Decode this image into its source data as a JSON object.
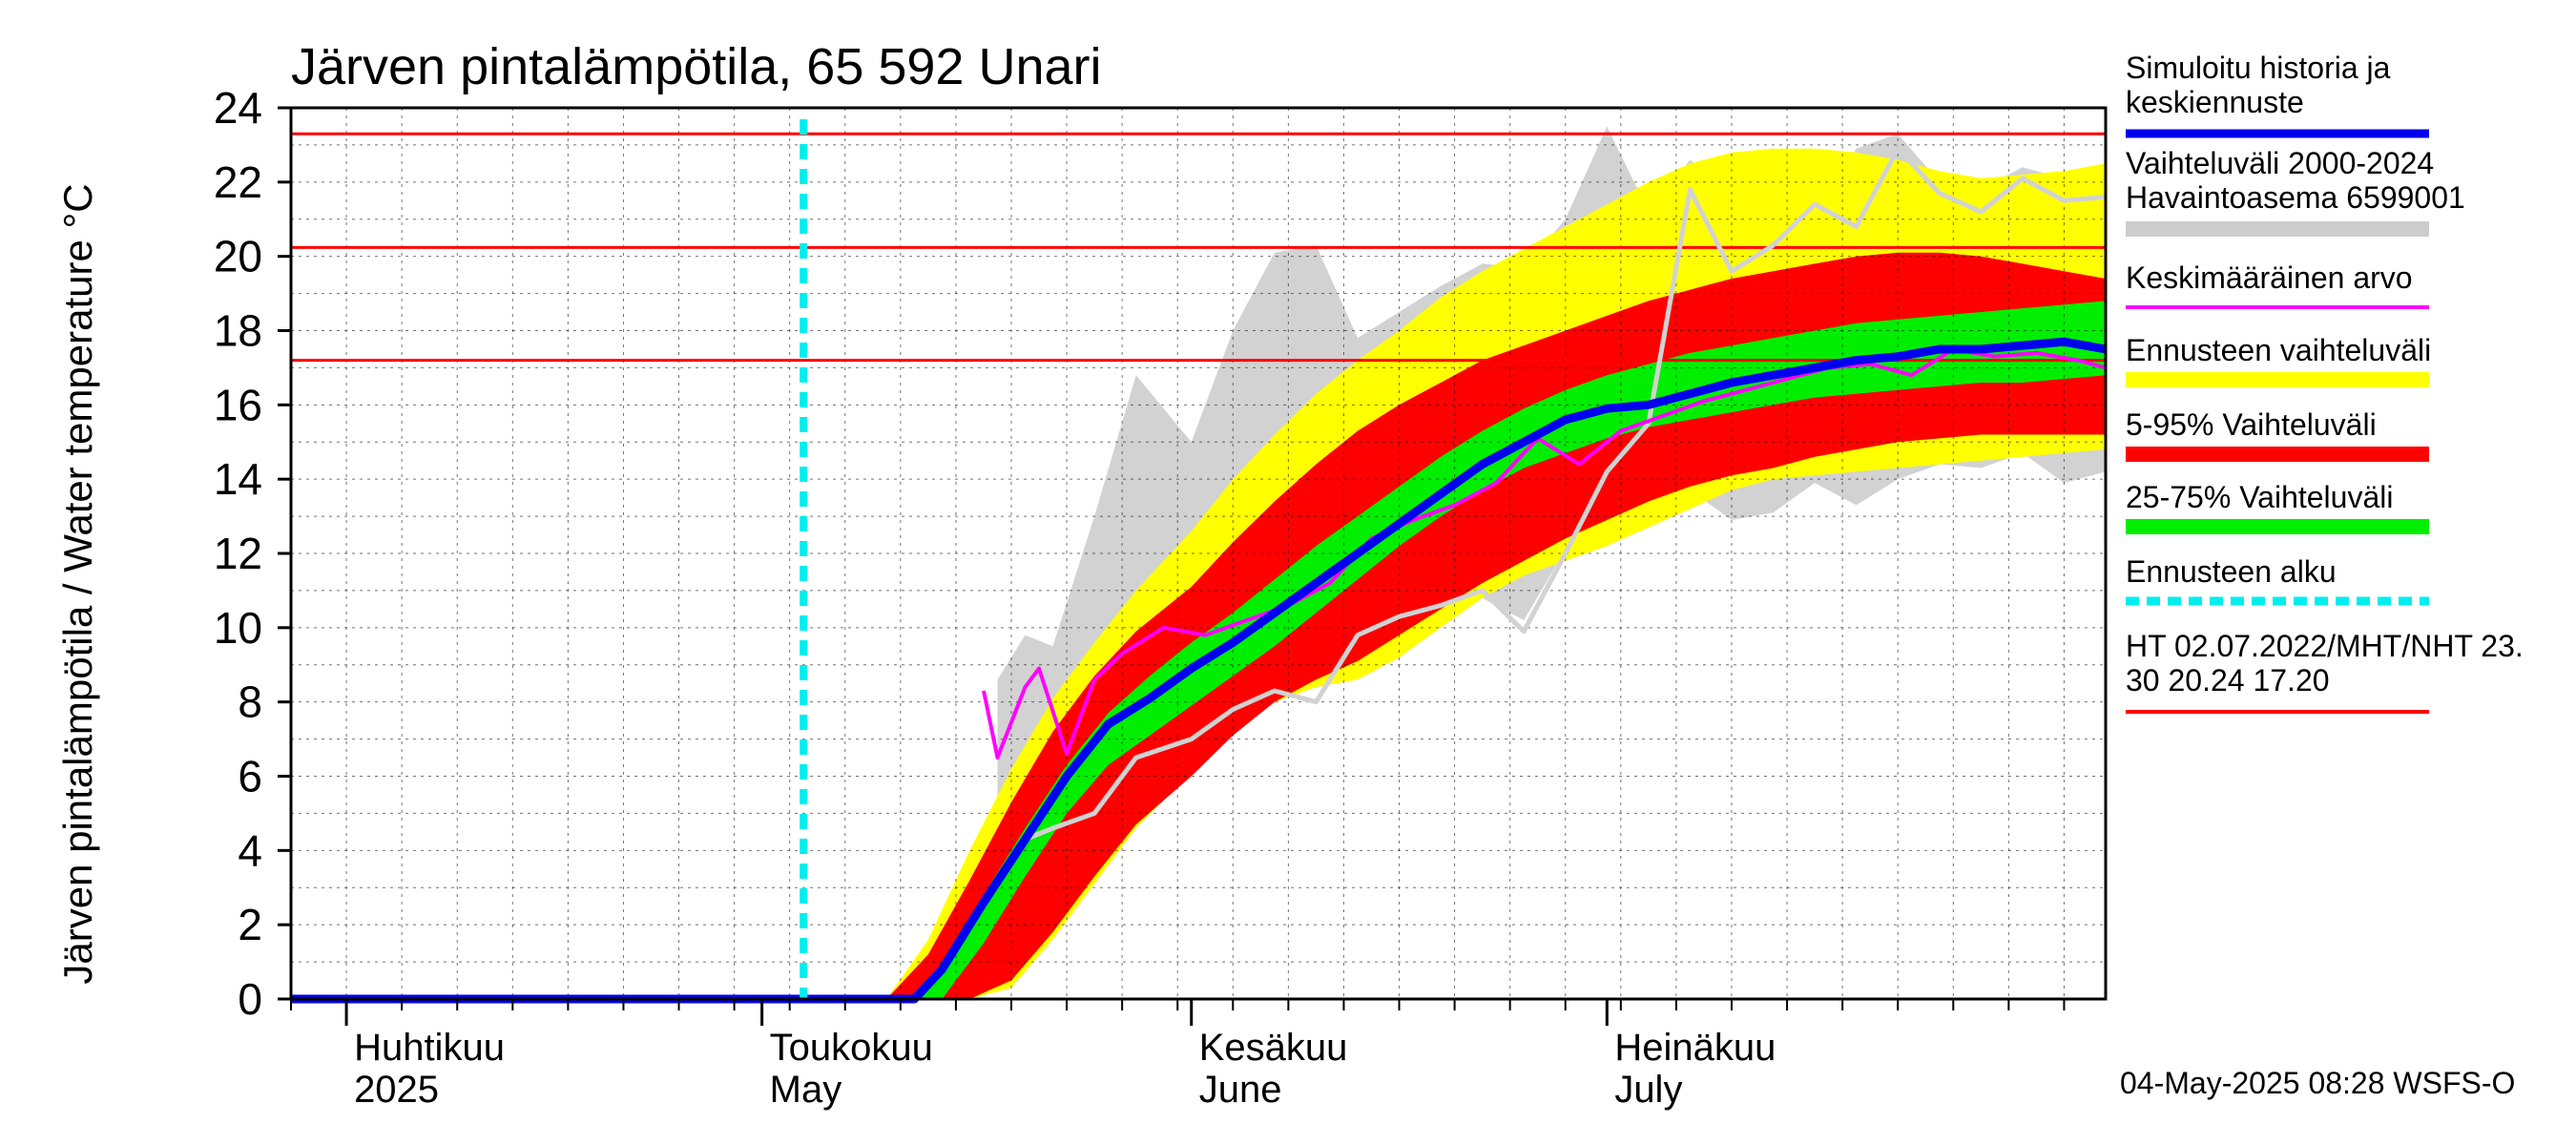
{
  "chart_data": {
    "type": "area",
    "title": "Järven pintalämpötila, 65 592 Unari",
    "ylabel": "Järven pintalämpötila / Water temperature °C",
    "ylim": [
      0,
      24
    ],
    "yticks": [
      0,
      2,
      4,
      6,
      8,
      10,
      12,
      14,
      16,
      18,
      20,
      22,
      24
    ],
    "xlim": [
      "2025-03-28",
      "2025-08-06"
    ],
    "grid": true,
    "month_labels": [
      {
        "date": "2025-04-01",
        "line1": "Huhtikuu",
        "line2": "2025"
      },
      {
        "date": "2025-05-01",
        "line1": "Toukokuu",
        "line2": "May"
      },
      {
        "date": "2025-06-01",
        "line1": "Kesäkuu",
        "line2": "June"
      },
      {
        "date": "2025-07-01",
        "line1": "Heinäkuu",
        "line2": "July"
      }
    ],
    "forecast_start": "2025-05-04",
    "hlines": [
      {
        "name": "HT",
        "value": 23.3
      },
      {
        "name": "MHT",
        "value": 20.24
      },
      {
        "name": "NHT",
        "value": 17.2
      }
    ],
    "legend": [
      {
        "text": "Simuloitu historia ja",
        "text2": "keskiennuste",
        "color": "#0000ee",
        "kind": "line-thick"
      },
      {
        "text": "Vaihteluväli 2000-2024",
        "text2": " Havaintoasema 6599001",
        "color": "#cccccc",
        "kind": "band"
      },
      {
        "text": "Keskimääräinen arvo",
        "text2": "",
        "color": "#ff00ff",
        "kind": "line"
      },
      {
        "text": "Ennusteen vaihteluväli",
        "text2": "",
        "color": "#ffff00",
        "kind": "band"
      },
      {
        "text": "5-95% Vaihteluväli",
        "text2": "",
        "color": "#ff0000",
        "kind": "band"
      },
      {
        "text": "25-75% Vaihteluväli",
        "text2": "",
        "color": "#00ee00",
        "kind": "band"
      },
      {
        "text": "Ennusteen alku",
        "text2": "",
        "color": "#00eeee",
        "kind": "dashed"
      },
      {
        "text": "HT 02.07.2022/MHT/NHT 23.",
        "text2": "30 20.24 17.20",
        "color": "#ff0000",
        "kind": "line"
      }
    ],
    "footer": "04-May-2025 08:28 WSFS-O",
    "series": {
      "historical_range": {
        "x": [
          "2025-05-18",
          "2025-05-20",
          "2025-05-22",
          "2025-05-25",
          "2025-05-28",
          "2025-06-01",
          "2025-06-04",
          "2025-06-07",
          "2025-06-10",
          "2025-06-13",
          "2025-06-16",
          "2025-06-19",
          "2025-06-22",
          "2025-06-25",
          "2025-06-28",
          "2025-07-01",
          "2025-07-04",
          "2025-07-07",
          "2025-07-10",
          "2025-07-13",
          "2025-07-16",
          "2025-07-19",
          "2025-07-22",
          "2025-07-25",
          "2025-07-28",
          "2025-07-31",
          "2025-08-03",
          "2025-08-06"
        ],
        "upper": [
          8.6,
          9.8,
          9.5,
          13.0,
          16.8,
          15.0,
          18.0,
          20.1,
          20.3,
          17.8,
          18.5,
          19.2,
          19.8,
          19.7,
          21.0,
          23.5,
          21.2,
          22.6,
          21.6,
          21.9,
          21.1,
          22.9,
          23.3,
          22.0,
          21.8,
          22.4,
          22.1,
          22.5
        ],
        "lower": [
          5.2,
          4.5,
          4.7,
          5.6,
          6.5,
          7.3,
          8.0,
          8.4,
          8.8,
          9.6,
          10.3,
          10.6,
          10.8,
          10.2,
          12.1,
          13.7,
          13.2,
          13.7,
          12.9,
          13.1,
          13.9,
          13.3,
          14.0,
          14.4,
          14.3,
          14.7,
          13.9,
          14.2
        ]
      },
      "observed_profile": {
        "x": [
          "2025-05-20",
          "2025-05-22",
          "2025-05-25",
          "2025-05-28",
          "2025-06-01",
          "2025-06-04",
          "2025-06-07",
          "2025-06-10",
          "2025-06-13",
          "2025-06-16",
          "2025-06-19",
          "2025-06-22",
          "2025-06-25",
          "2025-06-28",
          "2025-07-01",
          "2025-07-04",
          "2025-07-07",
          "2025-07-10",
          "2025-07-13",
          "2025-07-16",
          "2025-07-19",
          "2025-07-22",
          "2025-07-25",
          "2025-07-28",
          "2025-07-31",
          "2025-08-03",
          "2025-08-06"
        ],
        "y": [
          4.3,
          4.6,
          5.0,
          6.5,
          7.0,
          7.8,
          8.3,
          8.0,
          9.8,
          10.3,
          10.6,
          11.0,
          9.9,
          12.0,
          14.2,
          15.5,
          21.8,
          19.6,
          20.3,
          21.4,
          20.8,
          22.9,
          21.7,
          21.2,
          22.1,
          21.5,
          21.6
        ]
      },
      "forecast_range": {
        "x": [
          "2025-05-10",
          "2025-05-13",
          "2025-05-16",
          "2025-05-19",
          "2025-05-22",
          "2025-05-25",
          "2025-05-28",
          "2025-06-01",
          "2025-06-04",
          "2025-06-07",
          "2025-06-10",
          "2025-06-13",
          "2025-06-16",
          "2025-06-19",
          "2025-06-22",
          "2025-06-25",
          "2025-06-28",
          "2025-07-01",
          "2025-07-04",
          "2025-07-07",
          "2025-07-10",
          "2025-07-13",
          "2025-07-16",
          "2025-07-19",
          "2025-07-22",
          "2025-07-25",
          "2025-07-28",
          "2025-07-31",
          "2025-08-03",
          "2025-08-06"
        ],
        "upper": [
          0,
          1.6,
          4.0,
          6.2,
          8.1,
          9.6,
          11.0,
          12.6,
          14.0,
          15.2,
          16.3,
          17.2,
          18.0,
          18.9,
          19.6,
          20.2,
          20.8,
          21.4,
          22.0,
          22.5,
          22.8,
          22.9,
          22.9,
          22.8,
          22.6,
          22.3,
          22.1,
          22.2,
          22.3,
          22.5
        ],
        "lower": [
          0,
          0,
          0,
          0.3,
          1.6,
          3.1,
          4.6,
          6.1,
          7.2,
          8.0,
          8.4,
          8.6,
          9.2,
          10.0,
          10.8,
          11.4,
          11.8,
          12.2,
          12.7,
          13.2,
          13.7,
          14.0,
          14.1,
          14.2,
          14.3,
          14.4,
          14.5,
          14.6,
          14.7,
          14.8
        ]
      },
      "p5_95": {
        "x": [
          "2025-05-10",
          "2025-05-13",
          "2025-05-16",
          "2025-05-19",
          "2025-05-22",
          "2025-05-25",
          "2025-05-28",
          "2025-06-01",
          "2025-06-04",
          "2025-06-07",
          "2025-06-10",
          "2025-06-13",
          "2025-06-16",
          "2025-06-19",
          "2025-06-22",
          "2025-06-25",
          "2025-06-28",
          "2025-07-01",
          "2025-07-04",
          "2025-07-07",
          "2025-07-10",
          "2025-07-13",
          "2025-07-16",
          "2025-07-19",
          "2025-07-22",
          "2025-07-25",
          "2025-07-28",
          "2025-07-31",
          "2025-08-03",
          "2025-08-06"
        ],
        "upper": [
          0,
          1.2,
          3.2,
          5.3,
          7.2,
          8.7,
          9.9,
          11.1,
          12.3,
          13.4,
          14.4,
          15.3,
          16.0,
          16.6,
          17.2,
          17.6,
          18.0,
          18.4,
          18.8,
          19.1,
          19.4,
          19.6,
          19.8,
          20.0,
          20.1,
          20.1,
          20.0,
          19.8,
          19.6,
          19.4
        ],
        "lower": [
          0,
          0,
          0,
          0.5,
          1.8,
          3.3,
          4.7,
          6.0,
          7.1,
          8.0,
          8.6,
          9.1,
          9.8,
          10.5,
          11.2,
          11.8,
          12.4,
          12.9,
          13.4,
          13.8,
          14.1,
          14.3,
          14.6,
          14.8,
          15.0,
          15.1,
          15.2,
          15.2,
          15.2,
          15.2
        ]
      },
      "p25_75": {
        "x": [
          "2025-05-12",
          "2025-05-14",
          "2025-05-17",
          "2025-05-20",
          "2025-05-23",
          "2025-05-26",
          "2025-05-29",
          "2025-06-01",
          "2025-06-04",
          "2025-06-07",
          "2025-06-10",
          "2025-06-13",
          "2025-06-16",
          "2025-06-19",
          "2025-06-22",
          "2025-06-25",
          "2025-06-28",
          "2025-07-01",
          "2025-07-04",
          "2025-07-07",
          "2025-07-10",
          "2025-07-13",
          "2025-07-16",
          "2025-07-19",
          "2025-07-22",
          "2025-07-25",
          "2025-07-28",
          "2025-07-31",
          "2025-08-03",
          "2025-08-06"
        ],
        "upper": [
          0,
          1.0,
          2.8,
          4.6,
          6.3,
          7.7,
          8.7,
          9.6,
          10.4,
          11.3,
          12.2,
          13.0,
          13.8,
          14.6,
          15.3,
          15.9,
          16.4,
          16.8,
          17.1,
          17.4,
          17.6,
          17.8,
          18.0,
          18.2,
          18.3,
          18.4,
          18.5,
          18.6,
          18.7,
          18.8
        ],
        "lower": [
          0,
          0,
          1.5,
          3.3,
          5.0,
          6.3,
          7.1,
          7.9,
          8.7,
          9.5,
          10.4,
          11.3,
          12.2,
          13.0,
          13.7,
          14.3,
          14.7,
          15.1,
          15.4,
          15.6,
          15.8,
          16.0,
          16.2,
          16.3,
          16.4,
          16.5,
          16.6,
          16.6,
          16.7,
          16.8
        ]
      },
      "simulated_median": {
        "x": [
          "2025-03-28",
          "2025-05-12",
          "2025-05-14",
          "2025-05-17",
          "2025-05-20",
          "2025-05-23",
          "2025-05-26",
          "2025-05-29",
          "2025-06-01",
          "2025-06-04",
          "2025-06-07",
          "2025-06-10",
          "2025-06-13",
          "2025-06-16",
          "2025-06-19",
          "2025-06-22",
          "2025-06-25",
          "2025-06-28",
          "2025-07-01",
          "2025-07-04",
          "2025-07-07",
          "2025-07-10",
          "2025-07-13",
          "2025-07-16",
          "2025-07-19",
          "2025-07-22",
          "2025-07-25",
          "2025-07-28",
          "2025-07-31",
          "2025-08-03",
          "2025-08-06"
        ],
        "y": [
          0,
          0,
          0.8,
          2.6,
          4.3,
          6.0,
          7.4,
          8.1,
          8.9,
          9.6,
          10.4,
          11.2,
          12.0,
          12.8,
          13.6,
          14.4,
          15.0,
          15.6,
          15.9,
          16.0,
          16.3,
          16.6,
          16.8,
          17.0,
          17.2,
          17.3,
          17.5,
          17.5,
          17.6,
          17.7,
          17.5
        ]
      },
      "mean": {
        "x": [
          "2025-05-17",
          "2025-05-18",
          "2025-05-20",
          "2025-05-21",
          "2025-05-23",
          "2025-05-25",
          "2025-05-27",
          "2025-05-30",
          "2025-06-02",
          "2025-06-05",
          "2025-06-08",
          "2025-06-11",
          "2025-06-14",
          "2025-06-17",
          "2025-06-20",
          "2025-06-23",
          "2025-06-26",
          "2025-06-29",
          "2025-07-02",
          "2025-07-05",
          "2025-07-08",
          "2025-07-11",
          "2025-07-14",
          "2025-07-17",
          "2025-07-20",
          "2025-07-23",
          "2025-07-26",
          "2025-07-29",
          "2025-08-01",
          "2025-08-04",
          "2025-08-06"
        ],
        "y": [
          8.3,
          6.5,
          8.4,
          8.9,
          6.6,
          8.6,
          9.3,
          10.0,
          9.8,
          10.2,
          10.6,
          11.2,
          12.4,
          12.9,
          13.3,
          13.9,
          15.1,
          14.4,
          15.3,
          15.7,
          16.1,
          16.4,
          16.7,
          17.0,
          17.1,
          16.8,
          17.5,
          17.3,
          17.4,
          17.2,
          17.0
        ]
      }
    }
  }
}
